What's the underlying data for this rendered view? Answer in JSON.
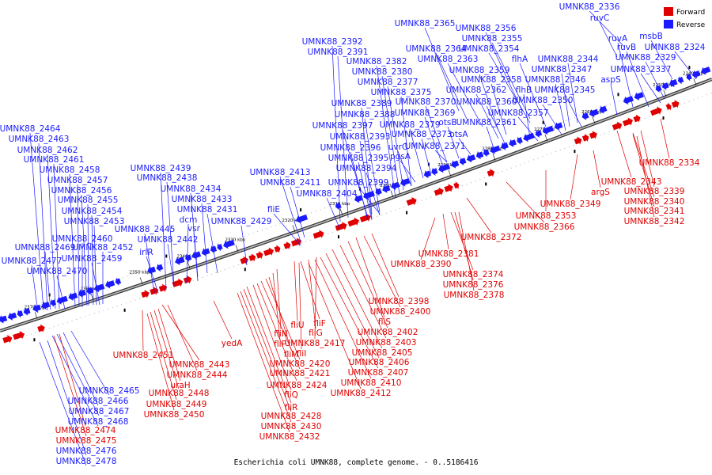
{
  "caption": "Escherichia coli UMNK88, complete genome. - 0..5186416",
  "colors": {
    "forward": "#e00000",
    "reverse": "#1a1aff",
    "backbone": "#555555",
    "misc": "#000000"
  },
  "legend": {
    "forward_label": "Forward",
    "reverse_label": "Reverse"
  },
  "ticks": [
    "2240 kbp",
    "2250 kbp",
    "2260 kbp",
    "2270 kbp",
    "2280 kbp",
    "2290 kbp",
    "2300 kbp",
    "2310 kbp",
    "2320 kbp",
    "2330 kbp",
    "2340 kbp",
    "2350 kbp",
    "2360 kbp",
    "2370 kbp"
  ],
  "reverse_labels": [
    "UMNK88_2336",
    "ruvC",
    "UMNK88_2365",
    "UMNK88_2356",
    "UMNK88_2392",
    "UMNK88_2355",
    "UMNK88_2391",
    "UMNK88_2364",
    "UMNK88_2354",
    "ruvA",
    "msbB",
    "UMNK88_2324",
    "UMNK88_2382",
    "UMNK88_2363",
    "flhA",
    "UMNK88_2344",
    "ruvB",
    "UMNK88_2329",
    "UMNK88_2380",
    "UMNK88_2359",
    "UMNK88_2347",
    "UMNK88_2337",
    "UMNK88_2377",
    "UMNK88_2358",
    "UMNK88_2346",
    "aspS",
    "UMNK88_2375",
    "UMNK88_2362",
    "flhB",
    "UMNK88_2345",
    "UMNK88_2389",
    "UMNK88_2370",
    "UMNK88_2360",
    "UMNK88_2350",
    "UMNK88_2388",
    "UMNK88_2369",
    "UMNK88_2357",
    "UMNK88_2397",
    "UMNK88_2379",
    "otsB",
    "UMNK88_2361",
    "UMNK88_2393",
    "UMNK88_2373",
    "otsA",
    "UMNK88_2396",
    "uvrC",
    "UMNK88_2371",
    "UMNK88_2395",
    "pgsA",
    "UMNK88_2394",
    "UMNK88_2399",
    "UMNK88_2413",
    "UMNK88_2411",
    "UMNK88_2404",
    "fliE",
    "UMNK88_2439",
    "UMNK88_2438",
    "UMNK88_2434",
    "UMNK88_2433",
    "dcm",
    "UMNK88_2431",
    "vsr",
    "UMNK88_2429",
    "UMNK88_2445",
    "UMNK88_2442",
    "irlR",
    "UMNK88_2464",
    "UMNK88_2463",
    "UMNK88_2462",
    "UMNK88_2461",
    "UMNK88_2458",
    "UMNK88_2457",
    "UMNK88_2456",
    "UMNK88_2455",
    "UMNK88_2454",
    "UMNK88_2453",
    "UMNK88_2460",
    "UMNK88_2469",
    "UMNK88_2452",
    "UMNK88_2459",
    "UMNK88_2477",
    "UMNK88_2470",
    "UMNK88_2465",
    "UMNK88_2466",
    "UMNK88_2467",
    "UMNK88_2468",
    "UMNK88_2476",
    "UMNK88_2478"
  ],
  "forward_labels": [
    "UMNK88_2334",
    "UMNK88_2343",
    "argS",
    "UMNK88_2339",
    "UMNK88_2349",
    "UMNK88_2340",
    "UMNK88_2353",
    "UMNK88_2341",
    "UMNK88_2366",
    "UMNK88_2342",
    "UMNK88_2372",
    "UMNK88_2381",
    "UMNK88_2390",
    "UMNK88_2374",
    "UMNK88_2376",
    "UMNK88_2378",
    "UMNK88_2398",
    "UMNK88_2400",
    "fliF",
    "fliS",
    "fliU",
    "fliG",
    "UMNK88_2402",
    "fliN",
    "UMNK88_2417",
    "UMNK88_2403",
    "fliP",
    "fliI",
    "UMNK88_2405",
    "fliM",
    "UMNK88_2406",
    "UMNK88_2420",
    "UMNK88_2407",
    "UMNK88_2421",
    "UMNK88_2410",
    "UMNK88_2424",
    "UMNK88_2412",
    "fliQ",
    "fliR",
    "UMNK88_2428",
    "UMNK88_2430",
    "UMNK88_2432",
    "yedA",
    "UMNK88_2451",
    "UMNK88_2443",
    "UMNK88_2444",
    "uraH",
    "UMNK88_2448",
    "UMNK88_2449",
    "UMNK88_2450",
    "UMNK88_2474",
    "UMNK88_2475"
  ]
}
